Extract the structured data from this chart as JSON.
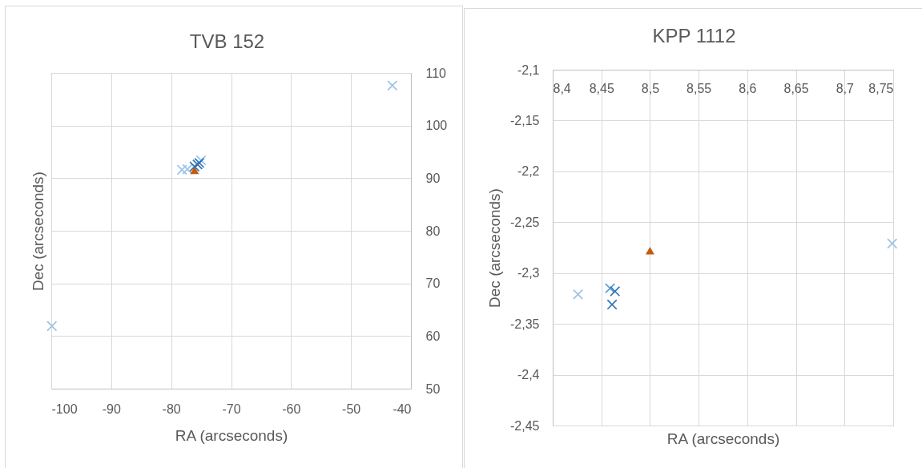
{
  "chart_data": [
    {
      "type": "scatter",
      "title": "TVB 152",
      "xlabel": "RA (arcseconds)",
      "ylabel": "Dec (arcseconds)",
      "xlim": [
        -100,
        -40
      ],
      "xticks": [
        -100,
        -90,
        -80,
        -70,
        -60,
        -50,
        -40
      ],
      "ylim": [
        50,
        110
      ],
      "yticks": [
        50,
        60,
        70,
        80,
        90,
        100,
        110
      ],
      "grid": true,
      "series": [
        {
          "color": "#9dc3e6",
          "marker": "cross",
          "x": [
            -43.1,
            -99.9,
            -78.2,
            -77.3,
            -75.0
          ],
          "values": [
            107.6,
            61.9,
            91.6,
            91.7,
            93.4
          ]
        },
        {
          "color": "#2e75b6",
          "marker": "cross",
          "x": [
            -76.1,
            -75.6,
            -75.3
          ],
          "values": [
            92.2,
            92.6,
            92.9
          ]
        },
        {
          "color": "#c55a11",
          "marker": "triangle",
          "x": [
            -76.1
          ],
          "values": [
            91.5
          ]
        }
      ]
    },
    {
      "type": "scatter",
      "title": "KPP 1112",
      "xlabel": "RA (arcseconds)",
      "ylabel": "Dec (arcseconds)",
      "xlim": [
        8.4,
        8.75
      ],
      "xticks": [
        {
          "value": 8.4,
          "label": "8,4"
        },
        {
          "value": 8.45,
          "label": "8,45"
        },
        {
          "value": 8.5,
          "label": "8,5"
        },
        {
          "value": 8.55,
          "label": "8,55"
        },
        {
          "value": 8.6,
          "label": "8,6"
        },
        {
          "value": 8.65,
          "label": "8,65"
        },
        {
          "value": 8.7,
          "label": "8,7"
        },
        {
          "value": 8.75,
          "label": "8,75"
        }
      ],
      "ylim": [
        -2.45,
        -2.1
      ],
      "yticks": [
        {
          "value": -2.45,
          "label": "-2,45"
        },
        {
          "value": -2.4,
          "label": "-2,4"
        },
        {
          "value": -2.35,
          "label": "-2,35"
        },
        {
          "value": -2.3,
          "label": "-2,3"
        },
        {
          "value": -2.25,
          "label": "-2,25"
        },
        {
          "value": -2.2,
          "label": "-2,2"
        },
        {
          "value": -2.15,
          "label": "-2,15"
        },
        {
          "value": -2.1,
          "label": "-2,1"
        }
      ],
      "grid": true,
      "series": [
        {
          "color": "#9dc3e6",
          "marker": "cross",
          "x": [
            8.426,
            8.749
          ],
          "values": [
            -2.321,
            -2.271
          ]
        },
        {
          "color": "#5b9bd5",
          "marker": "cross",
          "x": [
            8.459
          ],
          "values": [
            -2.315
          ]
        },
        {
          "color": "#2e75b6",
          "marker": "cross",
          "x": [
            8.464,
            8.461
          ],
          "values": [
            -2.318,
            -2.331
          ]
        },
        {
          "color": "#c55a11",
          "marker": "triangle",
          "x": [
            8.5
          ],
          "values": [
            -2.278
          ]
        }
      ]
    }
  ]
}
